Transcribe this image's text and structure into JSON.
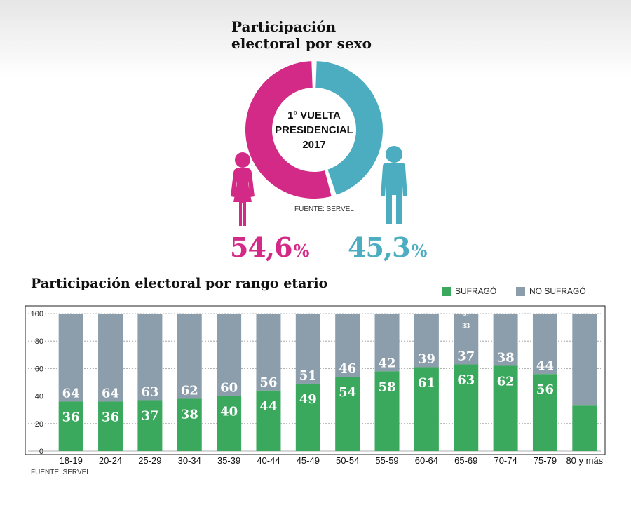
{
  "donut": {
    "title_line1": "Participación",
    "title_line2": "electoral por sexo",
    "center_line1": "1º VUELTA",
    "center_line2": "PRESIDENCIAL",
    "center_line3": "2017",
    "source": "FUENTE: SERVEL",
    "female_pct_value": "54,6",
    "male_pct_value": "45,3",
    "pct_symbol": "%",
    "female_color": "#d42a87",
    "male_color": "#4cadc1"
  },
  "bars": {
    "title": "Participación electoral por rango etario",
    "legend_voted": "SUFRAGÓ",
    "legend_not_voted": "NO SUFRAGÓ",
    "voted_color": "#3aa95e",
    "not_voted_color": "#8c9eab",
    "source": "FUENTE: SERVEL"
  },
  "chart_data": [
    {
      "type": "pie",
      "title": "Participación electoral por sexo",
      "categories": [
        "Mujeres",
        "Hombres"
      ],
      "values": [
        54.6,
        45.3
      ],
      "labels": [
        "54,6%",
        "45,3%"
      ],
      "center_text": "1º VUELTA PRESIDENCIAL 2017"
    },
    {
      "type": "bar",
      "title": "Participación electoral por rango etario",
      "categories": [
        "18-19",
        "20-24",
        "25-29",
        "30-34",
        "35-39",
        "40-44",
        "45-49",
        "50-54",
        "55-59",
        "60-64",
        "65-69",
        "70-74",
        "75-79",
        "80 y más"
      ],
      "series": [
        {
          "name": "SUFRAGÓ",
          "values": [
            36,
            36,
            37,
            38,
            40,
            44,
            49,
            54,
            58,
            61,
            63,
            62,
            56,
            33
          ]
        },
        {
          "name": "NO SUFRAGÓ",
          "values": [
            64,
            64,
            63,
            62,
            60,
            56,
            51,
            46,
            42,
            39,
            37,
            38,
            44,
            67
          ]
        }
      ],
      "voted_labels": [
        "36",
        "36",
        "37",
        "38",
        "40",
        "44",
        "49",
        "54",
        "58",
        "61",
        "63",
        "62",
        "56",
        ""
      ],
      "not_voted_labels": [
        "64",
        "64",
        "63",
        "62",
        "60",
        "56",
        "51",
        "46",
        "42",
        "39",
        "37",
        "38",
        "44",
        ""
      ],
      "stray_labels": [
        "67",
        "33"
      ],
      "yticks": [
        0,
        20,
        40,
        60,
        80,
        100
      ],
      "ylim": [
        0,
        100
      ],
      "stacked": true,
      "grid": true,
      "legend": "top-right"
    }
  ]
}
